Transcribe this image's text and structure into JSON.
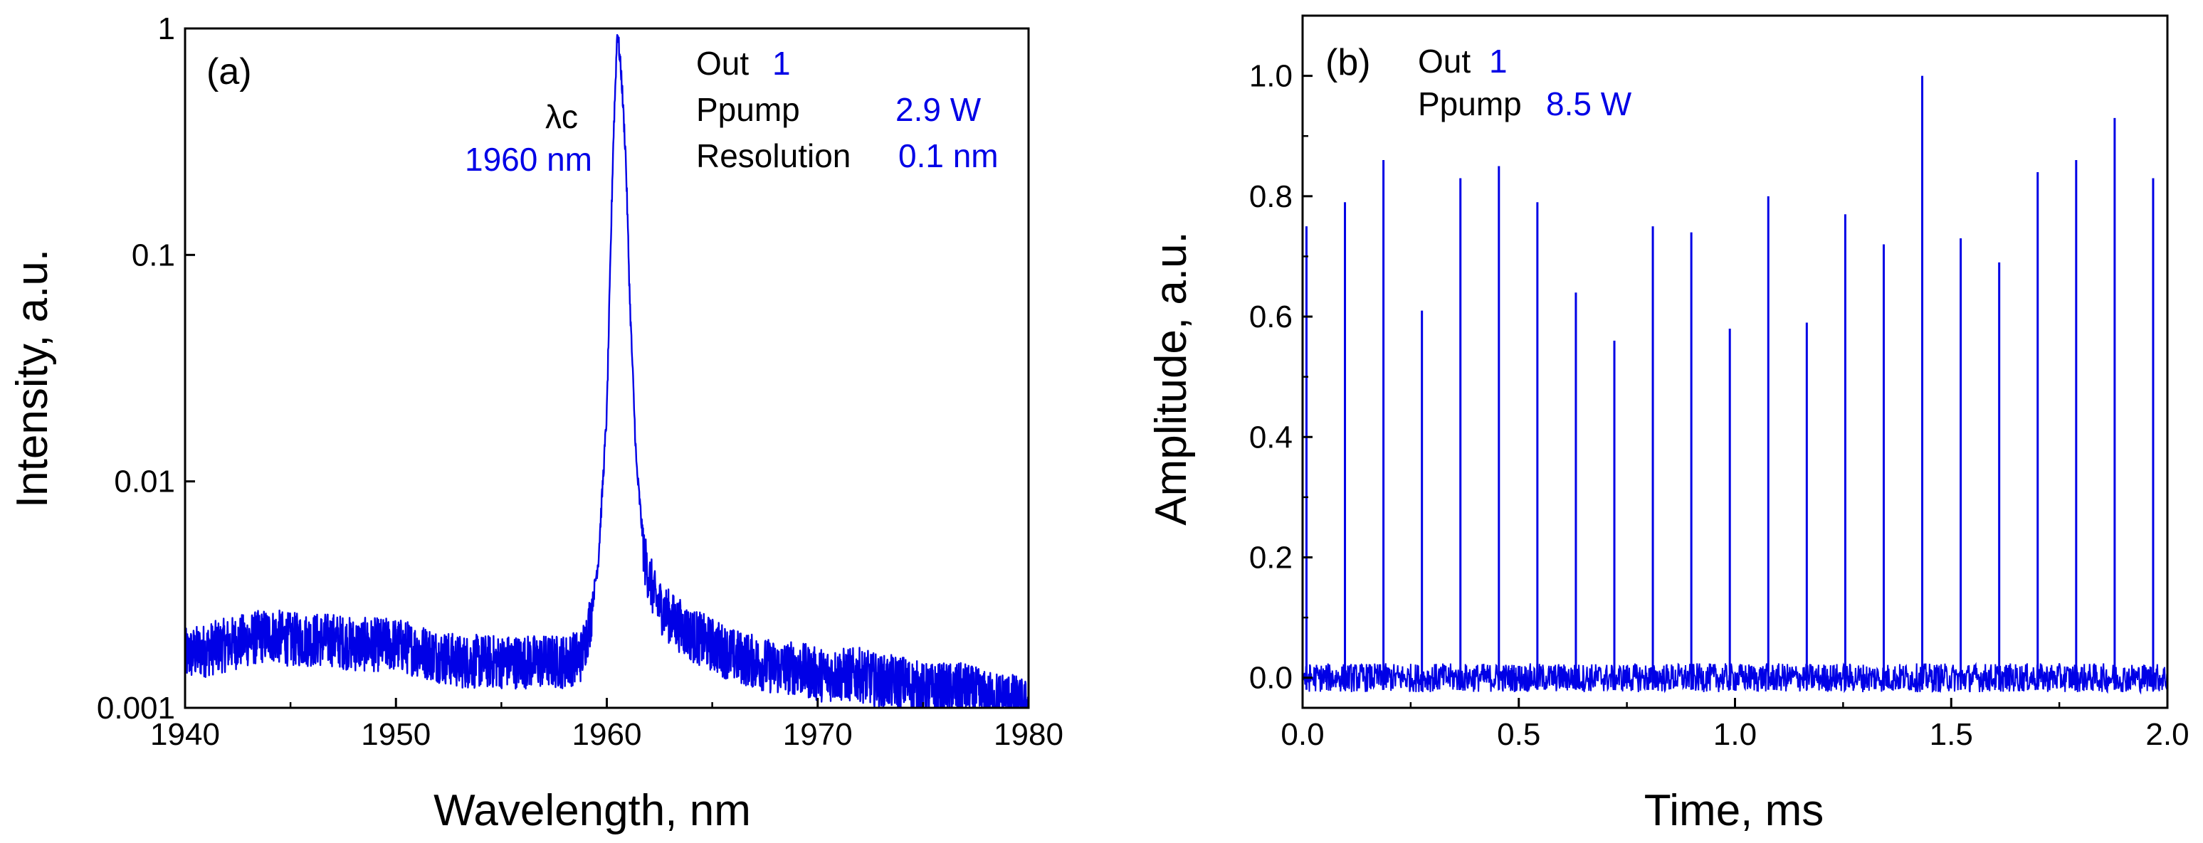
{
  "colors": {
    "series": "#0000e6",
    "axis": "#000000",
    "text": "#000000"
  },
  "chart_data": [
    {
      "type": "line",
      "panel_label": "(a)",
      "title": "",
      "xlabel": "Wavelength, nm",
      "ylabel": "Intensity, a.u.",
      "xlim": [
        1940,
        1980
      ],
      "ylim": [
        0.001,
        1
      ],
      "yscale": "log",
      "grid": false,
      "legend": "none",
      "x_ticks": [
        1940,
        1950,
        1960,
        1970,
        1980
      ],
      "x_tick_labels": [
        "1940",
        "1950",
        "1960",
        "1970",
        "1980"
      ],
      "y_ticks": [
        0.001,
        0.01,
        0.1,
        1
      ],
      "y_tick_labels": [
        "0.001",
        "0.01",
        "0.1",
        "1"
      ],
      "annotations": {
        "lambda_label": "λc",
        "lambda_value": "1960 nm",
        "out_label": "Out",
        "out_value": "1",
        "ppump_label": "Ppump",
        "ppump_value": "2.9 W",
        "resolution_label": "Resolution",
        "resolution_value": "0.1 nm"
      },
      "series": [
        {
          "x": [
            1940,
            1941,
            1942,
            1943,
            1944,
            1945,
            1946,
            1947,
            1948,
            1949,
            1950,
            1951,
            1952,
            1953,
            1954,
            1955,
            1956,
            1957,
            1958,
            1958.8,
            1959.2,
            1959.6,
            1960.0,
            1960.3,
            1960.5,
            1960.7,
            1960.9,
            1961.1,
            1961.4,
            1961.8,
            1962.3,
            1963,
            1964,
            1965,
            1966,
            1967,
            1968,
            1969,
            1970,
            1971,
            1972,
            1973,
            1974,
            1975,
            1976,
            1977,
            1978,
            1979,
            1980
          ],
          "y": [
            0.0017,
            0.0018,
            0.0019,
            0.002,
            0.0021,
            0.002,
            0.002,
            0.002,
            0.0019,
            0.0019,
            0.0019,
            0.0018,
            0.0017,
            0.0016,
            0.0016,
            0.0016,
            0.0016,
            0.0016,
            0.0016,
            0.0017,
            0.0024,
            0.0045,
            0.02,
            0.3,
            1.0,
            0.6,
            0.27,
            0.06,
            0.012,
            0.0045,
            0.003,
            0.0025,
            0.0021,
            0.0019,
            0.0017,
            0.0016,
            0.0015,
            0.0015,
            0.0014,
            0.0014,
            0.0014,
            0.0013,
            0.0013,
            0.0012,
            0.0012,
            0.0012,
            0.0011,
            0.0011,
            0.001
          ]
        }
      ]
    },
    {
      "type": "line",
      "panel_label": "(b)",
      "title": "",
      "xlabel": "Time, ms",
      "ylabel": "Amplitude, a.u.",
      "xlim": [
        0,
        2
      ],
      "ylim": [
        -0.05,
        1.1
      ],
      "grid": false,
      "legend": "none",
      "x_ticks": [
        0,
        0.5,
        1,
        1.5,
        2
      ],
      "x_tick_labels": [
        "0.0",
        "0.5",
        "1.0",
        "1.5",
        "2.0"
      ],
      "y_ticks": [
        0,
        0.2,
        0.4,
        0.6,
        0.8,
        1.0
      ],
      "y_tick_labels": [
        "0.0",
        "0.2",
        "0.4",
        "0.6",
        "0.8",
        "1.0"
      ],
      "annotations": {
        "out_label": "Out",
        "out_value": "1",
        "ppump_label": "Ppump",
        "ppump_value": "8.5 W"
      },
      "baseline_amplitude": 0.015,
      "pulses": {
        "t": [
          0.009,
          0.098,
          0.187,
          0.276,
          0.365,
          0.454,
          0.543,
          0.632,
          0.721,
          0.81,
          0.899,
          0.988,
          1.077,
          1.166,
          1.255,
          1.344,
          1.433,
          1.522,
          1.611,
          1.7,
          1.789,
          1.878,
          1.967
        ],
        "amplitude": [
          0.75,
          0.79,
          0.86,
          0.61,
          0.83,
          0.85,
          0.79,
          0.64,
          0.56,
          0.75,
          0.74,
          0.58,
          0.8,
          0.59,
          0.77,
          0.72,
          1.0,
          0.73,
          0.69,
          0.84,
          0.86,
          0.93,
          0.83
        ]
      }
    }
  ]
}
